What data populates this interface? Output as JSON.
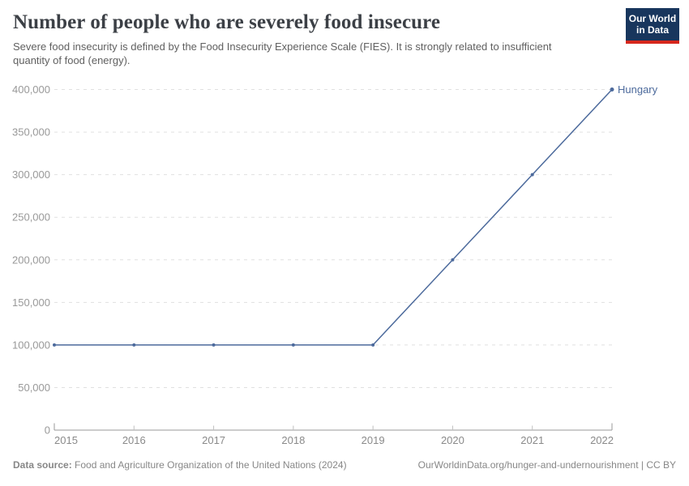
{
  "header": {
    "title": "Number of people who are severely food insecure",
    "subtitle": "Severe food insecurity is defined by the Food Insecurity Experience Scale (FIES). It is strongly related to insufficient quantity of food (energy).",
    "logo_line1": "Our World",
    "logo_line2": "in Data"
  },
  "chart_data": {
    "type": "line",
    "title": "Number of people who are severely food insecure",
    "x": [
      2015,
      2016,
      2017,
      2018,
      2019,
      2020,
      2021,
      2022
    ],
    "x_tick_labels": [
      "2015",
      "2016",
      "2017",
      "2018",
      "2019",
      "2020",
      "2021",
      "2022"
    ],
    "series": [
      {
        "name": "Hungary",
        "color": "#4c6a9c",
        "values": [
          100000,
          100000,
          100000,
          100000,
          100000,
          200000,
          300000,
          400000
        ]
      }
    ],
    "ylim": [
      0,
      400000
    ],
    "y_ticks": [
      {
        "value": 0,
        "label": "0"
      },
      {
        "value": 50000,
        "label": "50,000"
      },
      {
        "value": 100000,
        "label": "100,000"
      },
      {
        "value": 150000,
        "label": "150,000"
      },
      {
        "value": 200000,
        "label": "200,000"
      },
      {
        "value": 250000,
        "label": "250,000"
      },
      {
        "value": 300000,
        "label": "300,000"
      },
      {
        "value": 350000,
        "label": "350,000"
      },
      {
        "value": 400000,
        "label": "400,000"
      }
    ],
    "grid": "horizontal-dashed",
    "legend": "end-of-line-label"
  },
  "footer": {
    "source_label": "Data source:",
    "source_text": "Food and Agriculture Organization of the United Nations (2024)",
    "link_text": "OurWorldinData.org/hunger-and-undernourishment | CC BY"
  },
  "colors": {
    "line": "#4c6a9c",
    "grid": "#e0e0e0",
    "axis": "#9a9a9a",
    "axis_tick": "#c0c0c0",
    "y_label": "#999999",
    "x_label": "#8a8a8a",
    "logo_bg": "#18365d",
    "logo_stripe": "#d6271d"
  }
}
